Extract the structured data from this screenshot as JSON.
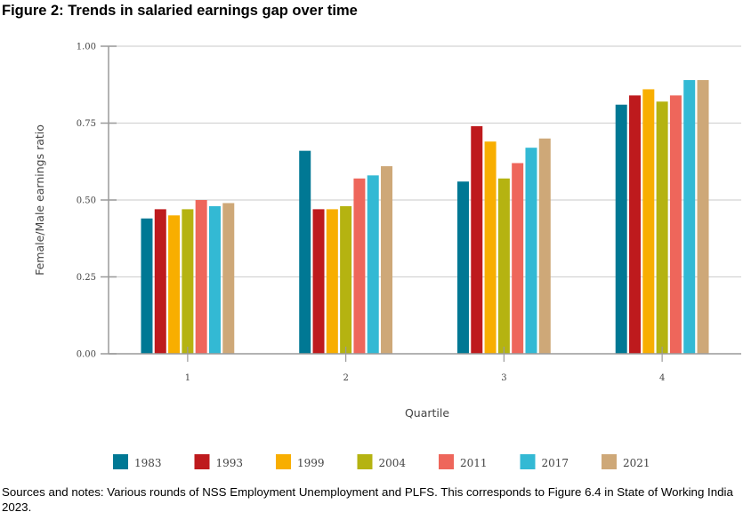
{
  "figure": {
    "title": "Figure 2: Trends in salaried earnings gap over time",
    "notes": "Sources and notes: Various rounds of NSS Employment Unemployment and PLFS. This corresponds to Figure 6.4 in State of Working India 2023."
  },
  "chart_data": {
    "type": "bar",
    "title": "Figure 2: Trends in salaried earnings gap over time",
    "xlabel": "Quartile",
    "ylabel": "Female/Male earnings ratio",
    "categories": [
      "1",
      "2",
      "3",
      "4"
    ],
    "ylim": [
      0,
      1
    ],
    "yticks": [
      "0.00",
      "0.25",
      "0.50",
      "0.75",
      "1.00"
    ],
    "ytick_values": [
      0,
      0.25,
      0.5,
      0.75,
      1.0
    ],
    "grid": true,
    "legend_position": "bottom",
    "series": [
      {
        "name": "1983",
        "color": "#007894",
        "values": [
          0.44,
          0.66,
          0.56,
          0.81
        ]
      },
      {
        "name": "1993",
        "color": "#BE1A1D",
        "values": [
          0.47,
          0.47,
          0.74,
          0.84
        ]
      },
      {
        "name": "1999",
        "color": "#F8AE00",
        "values": [
          0.45,
          0.47,
          0.69,
          0.86
        ]
      },
      {
        "name": "2004",
        "color": "#B5B311",
        "values": [
          0.47,
          0.48,
          0.57,
          0.82
        ]
      },
      {
        "name": "2011",
        "color": "#EE665B",
        "values": [
          0.5,
          0.57,
          0.62,
          0.84
        ]
      },
      {
        "name": "2017",
        "color": "#33B9D4",
        "values": [
          0.48,
          0.58,
          0.67,
          0.89
        ]
      },
      {
        "name": "2021",
        "color": "#CEA878",
        "values": [
          0.49,
          0.61,
          0.7,
          0.89
        ]
      }
    ]
  }
}
